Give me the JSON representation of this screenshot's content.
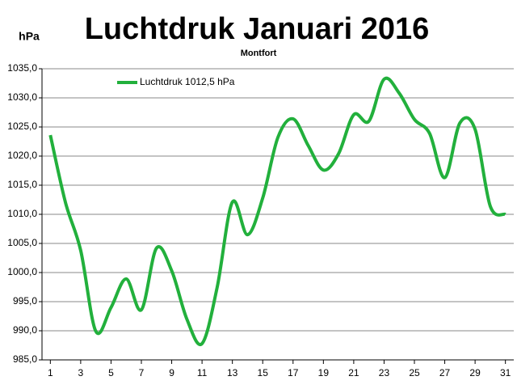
{
  "chart_data": {
    "type": "line",
    "title": "Luchtdruk Januari 2016",
    "subtitle": "Montfort",
    "y_label": "hPa",
    "x": [
      1,
      2,
      3,
      4,
      5,
      6,
      7,
      8,
      9,
      10,
      11,
      12,
      13,
      14,
      15,
      16,
      17,
      18,
      19,
      20,
      21,
      22,
      23,
      24,
      25,
      26,
      27,
      28,
      29,
      30,
      31
    ],
    "series": [
      {
        "name": "Luchtdruk 1012,5 hPa",
        "color": "#22b03c",
        "values": [
          1023.6,
          1012,
          1003.8,
          989.9,
          994,
          998.9,
          993.6,
          1004.2,
          1000.3,
          992,
          987.8,
          997.5,
          1012.1,
          1006.5,
          1012.8,
          1023.2,
          1026.4,
          1021.8,
          1017.6,
          1020.4,
          1027.1,
          1026,
          1033.2,
          1030.8,
          1026.3,
          1023.9,
          1016.3,
          1025.7,
          1024.6,
          1011.4,
          1010
        ]
      }
    ],
    "xlim": [
      0.45,
      31.55
    ],
    "xticks": [
      1,
      3,
      5,
      7,
      9,
      11,
      13,
      15,
      17,
      19,
      21,
      23,
      25,
      27,
      29,
      31
    ],
    "ylim": [
      985,
      1035
    ],
    "yticks": [
      {
        "value": 985,
        "label": "985,0"
      },
      {
        "value": 990,
        "label": "990,0"
      },
      {
        "value": 995,
        "label": "995,0"
      },
      {
        "value": 1000,
        "label": "1000,0"
      },
      {
        "value": 1005,
        "label": "1005,0"
      },
      {
        "value": 1010,
        "label": "1010,0"
      },
      {
        "value": 1015,
        "label": "1015,0"
      },
      {
        "value": 1020,
        "label": "1020,0"
      },
      {
        "value": 1025,
        "label": "1025,0"
      },
      {
        "value": 1030,
        "label": "1030,0"
      },
      {
        "value": 1035,
        "label": "1035,0"
      }
    ],
    "grid": true,
    "legend": "top-left"
  }
}
